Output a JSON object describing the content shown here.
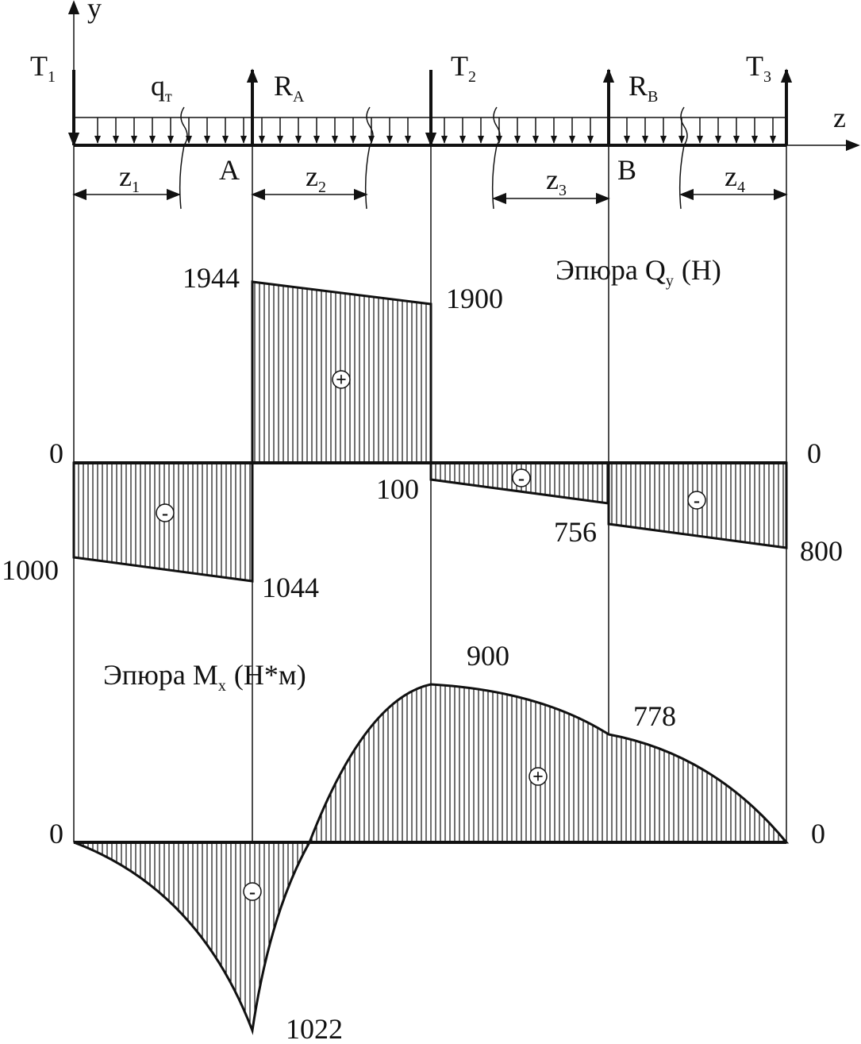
{
  "axes": {
    "y": "y",
    "z": "z"
  },
  "loads": [
    {
      "base": "T",
      "sub": "1"
    },
    {
      "base": "q",
      "sub": "т"
    },
    {
      "base": "R",
      "sub": "A"
    },
    {
      "base": "T",
      "sub": "2"
    },
    {
      "base": "R",
      "sub": "B"
    },
    {
      "base": "T",
      "sub": "3"
    }
  ],
  "supports": [
    "A",
    "B"
  ],
  "segments": [
    {
      "base": "z",
      "sub": "1"
    },
    {
      "base": "z",
      "sub": "2"
    },
    {
      "base": "z",
      "sub": "3"
    },
    {
      "base": "z",
      "sub": "4"
    }
  ],
  "shear_diagram": {
    "title": {
      "main": "Эпюра Q",
      "sub": "y",
      "unit": "(H)"
    },
    "labels": [
      1944,
      1900,
      0,
      0,
      100,
      1000,
      1044,
      756,
      800
    ],
    "signs": [
      "+",
      "-",
      "-",
      "-"
    ]
  },
  "moment_diagram": {
    "title": {
      "main": "Эпюра M",
      "sub": "x",
      "unit": "(H*м)"
    },
    "labels": [
      900,
      778,
      0,
      0,
      1022
    ],
    "signs": [
      "+",
      "-"
    ]
  }
}
